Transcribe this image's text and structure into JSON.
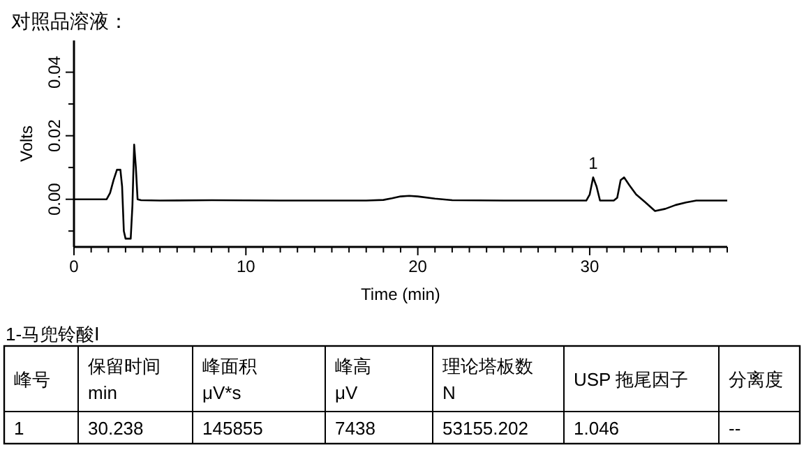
{
  "chart_data": [
    {
      "type": "line",
      "title": "对照品溶液：",
      "xlabel": "Time (min)",
      "ylabel": "Volts",
      "xlim": [
        0,
        38
      ],
      "ylim": [
        -0.015,
        0.05
      ],
      "xticks": [
        0,
        {
          "value": 1,
          "label": null
        },
        {
          "value": 2,
          "label": null
        },
        {
          "value": 3,
          "label": null
        },
        {
          "value": 4,
          "label": null
        },
        {
          "value": 5,
          "label": null
        },
        {
          "value": 6,
          "label": null
        },
        {
          "value": 7,
          "label": null
        },
        {
          "value": 8,
          "label": null
        },
        {
          "value": 9,
          "label": null
        },
        10,
        {
          "value": 11,
          "label": null
        },
        {
          "value": 12,
          "label": null
        },
        {
          "value": 13,
          "label": null
        },
        {
          "value": 14,
          "label": null
        },
        {
          "value": 15,
          "label": null
        },
        {
          "value": 16,
          "label": null
        },
        {
          "value": 17,
          "label": null
        },
        {
          "value": 18,
          "label": null
        },
        {
          "value": 19,
          "label": null
        },
        20,
        {
          "value": 21,
          "label": null
        },
        {
          "value": 22,
          "label": null
        },
        {
          "value": 23,
          "label": null
        },
        {
          "value": 24,
          "label": null
        },
        {
          "value": 25,
          "label": null
        },
        {
          "value": 26,
          "label": null
        },
        {
          "value": 27,
          "label": null
        },
        {
          "value": 28,
          "label": null
        },
        {
          "value": 29,
          "label": null
        },
        30,
        {
          "value": 31,
          "label": null
        },
        {
          "value": 32,
          "label": null
        },
        {
          "value": 33,
          "label": null
        },
        {
          "value": 34,
          "label": null
        },
        {
          "value": 35,
          "label": null
        },
        {
          "value": 36,
          "label": null
        },
        {
          "value": 37,
          "label": null
        },
        {
          "value": 38,
          "label": null
        }
      ],
      "yticks": [
        {
          "value": -0.01,
          "label": null
        },
        {
          "value": 0,
          "label": "0.00"
        },
        {
          "value": 0.01,
          "label": null
        },
        {
          "value": 0.02,
          "label": "0.02"
        },
        {
          "value": 0.03,
          "label": null
        },
        {
          "value": 0.04,
          "label": "0.04"
        }
      ],
      "grid": false,
      "series": [
        {
          "color": "#000000",
          "x": [
            0,
            1.9,
            2.1,
            2.3,
            2.5,
            2.7,
            2.8,
            2.9,
            3.0,
            3.3,
            3.4,
            3.5,
            3.6,
            3.7,
            3.9,
            5,
            8,
            12,
            16,
            17,
            18,
            18.5,
            19,
            19.5,
            20,
            21,
            22,
            25,
            28,
            29.8,
            30.0,
            30.2,
            30.4,
            30.6,
            31.0,
            31.4,
            31.6,
            31.8,
            32.0,
            32.3,
            32.7,
            33.2,
            33.8,
            34.4,
            35,
            35.6,
            36.2,
            38
          ],
          "values": [
            0,
            0,
            0.002,
            0.006,
            0.0093,
            0.0093,
            0.004,
            -0.01,
            -0.0124,
            -0.0124,
            -0.002,
            0.0172,
            0.01,
            0,
            -0.0003,
            -0.0004,
            -0.0003,
            -0.0004,
            -0.0004,
            -0.0004,
            -0.0002,
            0.0003,
            0.0009,
            0.0011,
            0.0009,
            0.0002,
            -0.0003,
            -0.0004,
            -0.0004,
            -0.0004,
            0.0015,
            0.0069,
            0.004,
            -0.0004,
            -0.0004,
            -0.0004,
            0.0005,
            0.006,
            0.0069,
            0.0045,
            0.0015,
            -0.0008,
            -0.0037,
            -0.003,
            -0.0018,
            -0.001,
            -0.0004,
            -0.0004
          ]
        }
      ],
      "annotations": [
        {
          "text": "1",
          "x": 30.2,
          "y": 0.0069
        }
      ]
    },
    {
      "type": "other",
      "title": "1-马兜铃酸Ⅰ",
      "annotations": [
        "峰号",
        "保留时间\nmin",
        "峰面积\nμV*s",
        "峰高\nμV",
        "理论塔板数\nN",
        "USP 拖尾因子",
        "分离度",
        "1",
        "30.238",
        "145855",
        "7438",
        "53155.202",
        "1.046",
        "--"
      ]
    }
  ]
}
